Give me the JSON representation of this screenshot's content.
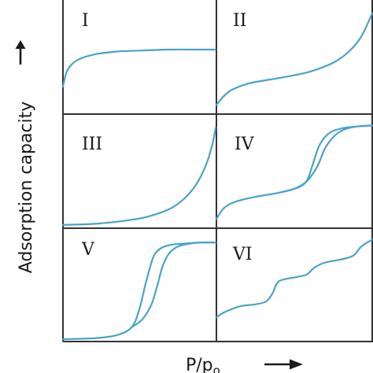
{
  "figure": {
    "ylabel": "Adsorption capacity",
    "xlabel_main": "P/p",
    "xlabel_sub": "o",
    "line_color": "#4aa3c8",
    "frame_color": "#333333",
    "background": "#ffffff"
  },
  "chart_data": [
    {
      "type": "line",
      "label": "I",
      "curves": [
        {
          "x": [
            0,
            0.02,
            0.05,
            0.1,
            0.2,
            0.35,
            0.5,
            0.7,
            0.85,
            1.0
          ],
          "y": [
            0.25,
            0.38,
            0.46,
            0.52,
            0.57,
            0.6,
            0.61,
            0.62,
            0.62,
            0.62
          ]
        }
      ]
    },
    {
      "type": "line",
      "label": "II",
      "curves": [
        {
          "x": [
            0,
            0.05,
            0.1,
            0.2,
            0.3,
            0.45,
            0.6,
            0.75,
            0.85,
            0.93,
            1.0
          ],
          "y": [
            0.07,
            0.16,
            0.22,
            0.28,
            0.31,
            0.35,
            0.4,
            0.49,
            0.6,
            0.75,
            0.98
          ]
        }
      ]
    },
    {
      "type": "line",
      "label": "III",
      "curves": [
        {
          "x": [
            0,
            0.2,
            0.4,
            0.55,
            0.7,
            0.8,
            0.88,
            0.94,
            0.98,
            1.0
          ],
          "y": [
            0.01,
            0.02,
            0.05,
            0.09,
            0.17,
            0.28,
            0.43,
            0.62,
            0.82,
            0.98
          ]
        }
      ]
    },
    {
      "type": "line",
      "label": "IV",
      "curves": [
        {
          "x": [
            0,
            0.05,
            0.12,
            0.25,
            0.4,
            0.52,
            0.58,
            0.62,
            0.66,
            0.72,
            0.8,
            0.9,
            1.0
          ],
          "y": [
            0.07,
            0.18,
            0.24,
            0.29,
            0.33,
            0.38,
            0.45,
            0.62,
            0.8,
            0.92,
            0.97,
            0.99,
            1.0
          ]
        },
        {
          "x": [
            0.4,
            0.5,
            0.56,
            0.6,
            0.65,
            0.7,
            0.76,
            0.82,
            0.9,
            1.0
          ],
          "y": [
            0.33,
            0.37,
            0.42,
            0.48,
            0.6,
            0.78,
            0.9,
            0.96,
            0.99,
            1.0
          ]
        }
      ]
    },
    {
      "type": "line",
      "label": "V",
      "curves": [
        {
          "x": [
            0,
            0.2,
            0.35,
            0.45,
            0.5,
            0.54,
            0.57,
            0.6,
            0.65,
            0.72,
            0.8,
            0.9,
            1.0
          ],
          "y": [
            0.0,
            0.01,
            0.04,
            0.12,
            0.3,
            0.55,
            0.72,
            0.85,
            0.92,
            0.95,
            0.96,
            0.97,
            0.97
          ]
        },
        {
          "x": [
            0.45,
            0.52,
            0.58,
            0.62,
            0.65,
            0.69,
            0.74,
            0.8,
            0.9,
            1.0
          ],
          "y": [
            0.12,
            0.2,
            0.35,
            0.55,
            0.72,
            0.85,
            0.92,
            0.95,
            0.97,
            0.97
          ]
        }
      ]
    },
    {
      "type": "line",
      "label": "VI",
      "curves": [
        {
          "x": [
            0,
            0.05,
            0.15,
            0.25,
            0.32,
            0.36,
            0.4,
            0.5,
            0.58,
            0.63,
            0.7,
            0.8,
            0.88,
            0.93,
            1.0
          ],
          "y": [
            0.22,
            0.27,
            0.33,
            0.35,
            0.38,
            0.46,
            0.58,
            0.62,
            0.65,
            0.72,
            0.77,
            0.8,
            0.84,
            0.93,
            1.0
          ]
        }
      ]
    }
  ]
}
